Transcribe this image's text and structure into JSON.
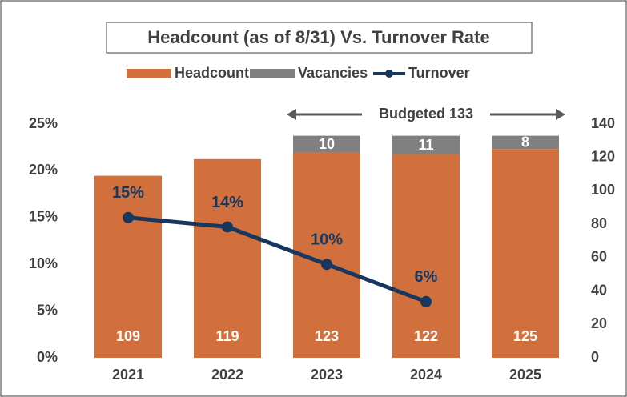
{
  "chart_data": {
    "type": "bar",
    "title": "Headcount (as of 8/31) Vs. Turnover Rate",
    "annotation": "Budgeted 133",
    "categories": [
      "2021",
      "2022",
      "2023",
      "2024",
      "2025"
    ],
    "series": [
      {
        "name": "Headcount",
        "type": "bar",
        "color": "#d1703c",
        "axis": "y2",
        "values": [
          109,
          119,
          123,
          122,
          125
        ]
      },
      {
        "name": "Vacancies",
        "type": "bar",
        "color": "#808080",
        "axis": "y2",
        "values": [
          null,
          null,
          10,
          11,
          8
        ]
      },
      {
        "name": "Turnover",
        "type": "line",
        "color": "#17375e",
        "axis": "y",
        "values": [
          15,
          14,
          10,
          6,
          null
        ],
        "value_labels": [
          "15%",
          "14%",
          "10%",
          "6%",
          null
        ]
      }
    ],
    "stacked": true,
    "ylim": [
      0,
      25
    ],
    "yticks": [
      {
        "value": 0,
        "label": "0%"
      },
      {
        "value": 5,
        "label": "5%"
      },
      {
        "value": 10,
        "label": "10%"
      },
      {
        "value": 15,
        "label": "15%"
      },
      {
        "value": 20,
        "label": "20%"
      },
      {
        "value": 25,
        "label": "25%"
      }
    ],
    "y2lim": [
      0,
      140
    ],
    "y2ticks": [
      0,
      20,
      40,
      60,
      80,
      100,
      120,
      140
    ],
    "grid": false,
    "legend": "top"
  }
}
